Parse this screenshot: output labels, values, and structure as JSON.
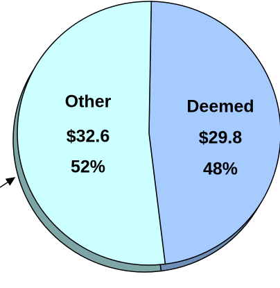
{
  "chart_data": {
    "type": "pie",
    "categories": [
      "Deemed",
      "Other"
    ],
    "values": [
      29.8,
      32.6
    ],
    "value_labels": [
      "$29.8",
      "$32.6"
    ],
    "percents": [
      48,
      52
    ],
    "percent_labels": [
      "48%",
      "52%"
    ],
    "colors": [
      "#a6ccff",
      "#ccffff"
    ],
    "side_colors": [
      "#6f8fb8",
      "#7fa6a6"
    ]
  }
}
